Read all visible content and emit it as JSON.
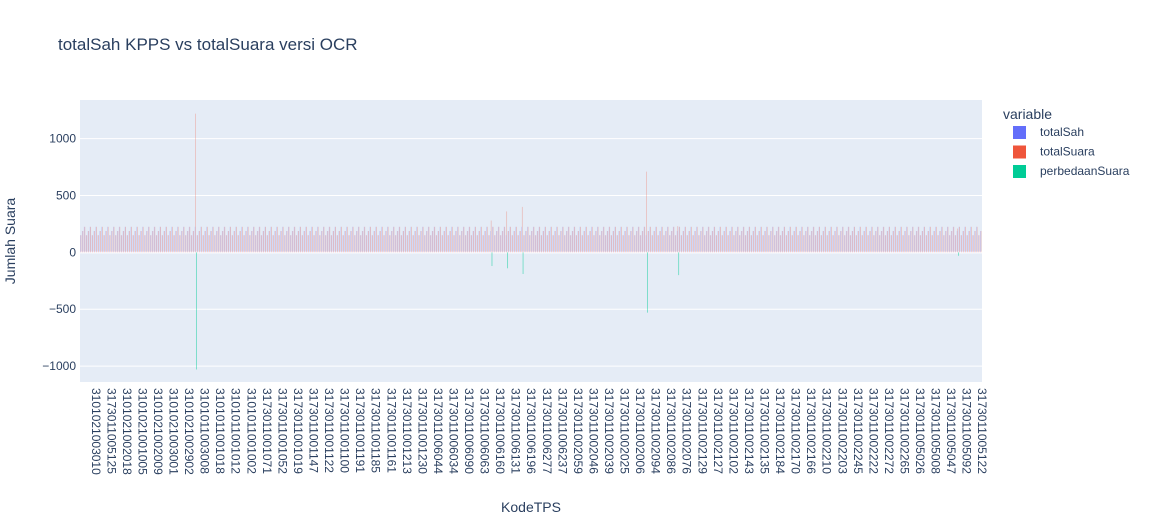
{
  "chart_data": {
    "type": "bar",
    "title": "totalSah KPPS vs totalSuara versi OCR",
    "xlabel": "KodeTPS",
    "ylabel": "Jumlah Suara",
    "yticks": [
      -1000,
      -500,
      0,
      500,
      1000
    ],
    "ylim": [
      -1140,
      1340
    ],
    "grid": true,
    "legend_position": "top-right",
    "legend_title": "variable",
    "x_tick_labels": [
      "3101021003010",
      "3173011005125",
      "3101021002018",
      "3101021001005",
      "3101021002009",
      "3101021003001",
      "3101021002902",
      "3101011003008",
      "3101011001018",
      "3101011001012",
      "3101011001002",
      "3173011001071",
      "3173011001052",
      "3173011001019",
      "3173011001147",
      "3173011001122",
      "3173011001100",
      "3173011001191",
      "3173011001185",
      "3173011001161",
      "3173011001213",
      "3173011001230",
      "3173011006044",
      "3173011006034",
      "3173011006090",
      "3173011006063",
      "3173011006160",
      "3173011006131",
      "3173011006196",
      "3173011006277",
      "3173011006237",
      "3173011002059",
      "3173011002046",
      "3173011002039",
      "3173011002025",
      "3173011002006",
      "3173011002094",
      "3173011002086",
      "3173011002076",
      "3173011002129",
      "3173011002127",
      "3173011002102",
      "3173011002143",
      "3173011002135",
      "3173011002184",
      "3173011002170",
      "3173011002166",
      "3173011002210",
      "3173011002203",
      "3173011002245",
      "3173011002222",
      "3173011002272",
      "3173011002265",
      "3173011005026",
      "3173011005008",
      "3173011005047",
      "3173011005092",
      "3173011005122"
    ],
    "series": [
      {
        "name": "totalSah",
        "color": "#636efa"
      },
      {
        "name": "totalSuara",
        "color": "#ef553b"
      },
      {
        "name": "perbedaanSuara",
        "color": "#00cc96"
      }
    ],
    "typical_range": [
      140,
      250
    ],
    "highlights": [
      {
        "category_index": 7,
        "totalSuara": 1220,
        "perbedaanSuara": -1030
      },
      {
        "category_index": 26,
        "totalSuara": 280,
        "perbedaanSuara": -120
      },
      {
        "category_index": 27,
        "totalSuara": 360,
        "perbedaanSuara": -140
      },
      {
        "category_index": 28,
        "totalSuara": 400,
        "perbedaanSuara": -190
      },
      {
        "category_index": 36,
        "totalSuara": 710,
        "perbedaanSuara": -530
      },
      {
        "category_index": 38,
        "totalSuara": 230,
        "perbedaanSuara": -200
      },
      {
        "category_index": 56,
        "totalSuara": 210,
        "perbedaanSuara": -30
      }
    ]
  }
}
